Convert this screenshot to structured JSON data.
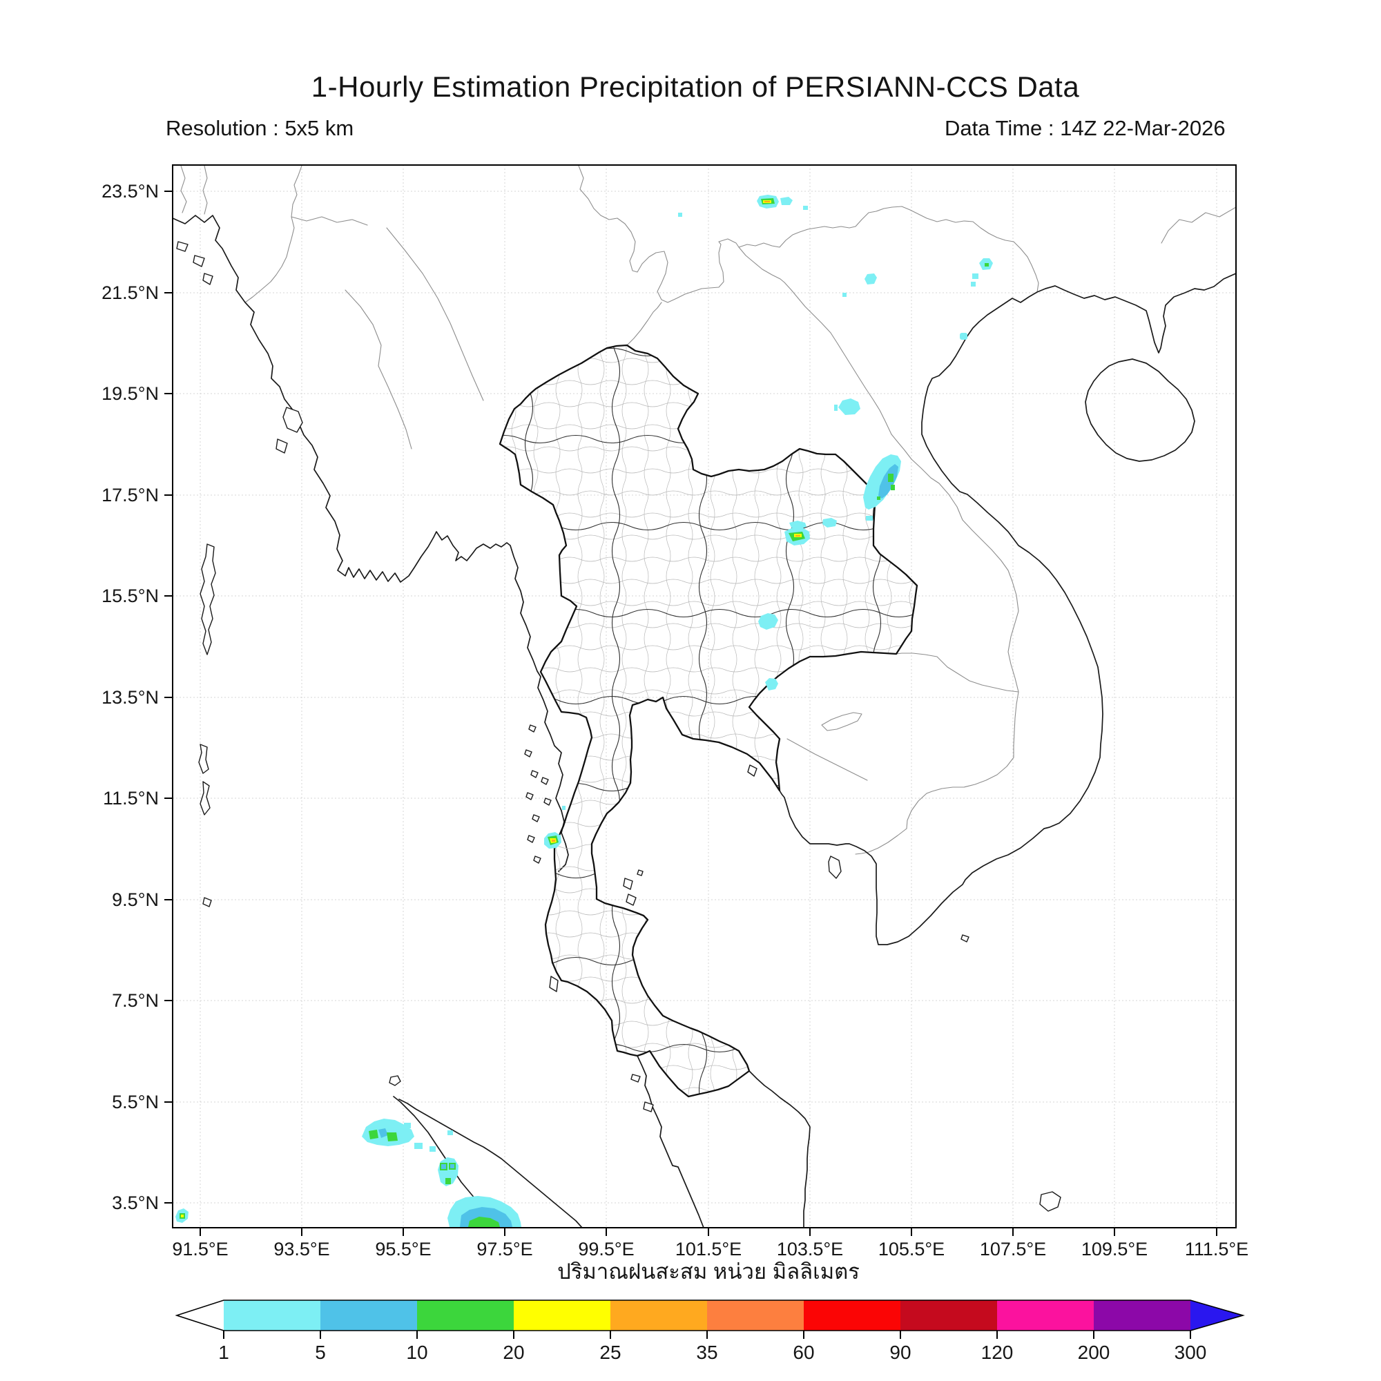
{
  "header": {
    "title": "1-Hourly Estimation Precipitation of PERSIANN-CCS Data",
    "resolution": "Resolution : 5x5 km",
    "data_time": "Data Time : 14Z 22-Mar-2026"
  },
  "map": {
    "x_tick_labels": [
      "91.5°E",
      "93.5°E",
      "95.5°E",
      "97.5°E",
      "99.5°E",
      "101.5°E",
      "103.5°E",
      "105.5°E",
      "107.5°E",
      "109.5°E",
      "111.5°E"
    ],
    "y_tick_labels": [
      "23.5°N",
      "21.5°N",
      "19.5°N",
      "17.5°N",
      "15.5°N",
      "13.5°N",
      "11.5°N",
      "9.5°N",
      "7.5°N",
      "5.5°N",
      "3.5°N"
    ],
    "projection": "lat/lon grid, 2° spacing",
    "region": "Thailand and Indochina (approx 91°E–112°E, 3°N–24°N)"
  },
  "colorbar": {
    "axis_label_thai": "ปริมาณฝนสะสม หน่วย มิลลิเมตร",
    "tick_labels": [
      "1",
      "5",
      "10",
      "20",
      "25",
      "35",
      "60",
      "90",
      "120",
      "200",
      "300"
    ],
    "segment_colors": [
      "#7DEFF4",
      "#4FC2E8",
      "#3CD63C",
      "#FFFF00",
      "#FFA91F",
      "#FD7F3F",
      "#FB0505",
      "#C50A1E",
      "#FB129E",
      "#8C08A8"
    ],
    "underflow_color": "#FFFFFF",
    "overflow_color": "#2A17EF",
    "units": "mm"
  },
  "chart_data": {
    "type": "heatmap",
    "title": "1-Hourly Estimation Precipitation of PERSIANN-CCS Data",
    "xlabel": "ปริมาณฝนสะสม หน่วย มิลลิเมตร",
    "x_ticks": [
      91.5,
      93.5,
      95.5,
      97.5,
      99.5,
      101.5,
      103.5,
      105.5,
      107.5,
      109.5,
      111.5
    ],
    "y_ticks": [
      23.5,
      21.5,
      19.5,
      17.5,
      15.5,
      13.5,
      11.5,
      9.5,
      7.5,
      5.5,
      3.5
    ],
    "legend_breaks_mm": [
      1,
      5,
      10,
      20,
      25,
      35,
      60,
      90,
      120,
      200,
      300
    ],
    "precipitation_cells": [
      {
        "lat": 22.8,
        "lon": 102.65,
        "peak_band_mm": "25-35"
      },
      {
        "lat": 22.1,
        "lon": 106.85,
        "peak_band_mm": "10-20"
      },
      {
        "lat": 21.8,
        "lon": 106.6,
        "peak_band_mm": "1-5"
      },
      {
        "lat": 21.8,
        "lon": 104.6,
        "peak_band_mm": "1-5"
      },
      {
        "lat": 20.7,
        "lon": 106.45,
        "peak_band_mm": "1-5"
      },
      {
        "lat": 19.2,
        "lon": 104.2,
        "peak_band_mm": "1-5"
      },
      {
        "lat": 17.6,
        "lon": 105.0,
        "peak_band_mm": "10-20"
      },
      {
        "lat": 16.8,
        "lon": 103.2,
        "peak_band_mm": "20-25"
      },
      {
        "lat": 17.0,
        "lon": 103.9,
        "peak_band_mm": "1-5"
      },
      {
        "lat": 15.1,
        "lon": 102.6,
        "peak_band_mm": "1-5"
      },
      {
        "lat": 13.7,
        "lon": 102.7,
        "peak_band_mm": "1-5"
      },
      {
        "lat": 10.7,
        "lon": 98.4,
        "peak_band_mm": "25-35"
      },
      {
        "lat": 4.8,
        "lon": 94.9,
        "peak_band_mm": "10-20"
      },
      {
        "lat": 4.1,
        "lon": 96.3,
        "peak_band_mm": "10-20"
      },
      {
        "lat": 3.0,
        "lon": 96.9,
        "peak_band_mm": "10-20"
      },
      {
        "lat": 3.1,
        "lon": 91.2,
        "peak_band_mm": "20-25"
      }
    ]
  }
}
